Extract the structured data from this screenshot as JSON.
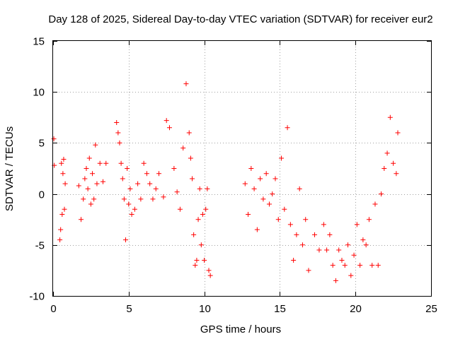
{
  "chart_data": {
    "type": "scatter",
    "title": "Day 128 of 2025, Sidereal Day-to-day VTEC variation (SDTVAR) for receiver eur2",
    "xlabel": "GPS time / hours",
    "ylabel": "SDTVAR / TECUs",
    "xlim": [
      0,
      25
    ],
    "ylim": [
      -10,
      15
    ],
    "x_ticks": [
      0,
      5,
      10,
      15,
      20,
      25
    ],
    "x_tick_labels": [
      "0",
      "5",
      "10",
      "15",
      "20",
      "25"
    ],
    "y_ticks": [
      -10,
      -5,
      0,
      5,
      10,
      15
    ],
    "y_tick_labels": [
      "-10",
      "-5",
      "0",
      "5",
      "10",
      "15"
    ],
    "grid": true,
    "marker": "plus",
    "series_color": "#ff0000",
    "series": [
      {
        "name": "SDTVAR eur2",
        "x": [
          0.05,
          0.08,
          0.45,
          0.5,
          0.55,
          0.6,
          0.65,
          0.7,
          0.75,
          0.8,
          1.7,
          1.85,
          2.0,
          2.1,
          2.2,
          2.3,
          2.4,
          2.5,
          2.6,
          2.7,
          2.8,
          2.9,
          3.1,
          3.3,
          3.5,
          4.2,
          4.3,
          4.4,
          4.5,
          4.6,
          4.7,
          4.8,
          4.9,
          5.0,
          5.1,
          5.2,
          5.4,
          5.6,
          5.8,
          6.0,
          6.2,
          6.4,
          6.6,
          6.8,
          7.0,
          7.3,
          7.5,
          7.7,
          8.0,
          8.2,
          8.4,
          8.6,
          8.8,
          9.0,
          9.1,
          9.2,
          9.3,
          9.4,
          9.5,
          9.6,
          9.7,
          9.8,
          9.9,
          10.0,
          10.1,
          10.2,
          10.3,
          10.4,
          12.7,
          12.9,
          13.1,
          13.3,
          13.5,
          13.7,
          13.9,
          14.1,
          14.3,
          14.5,
          14.7,
          14.9,
          15.1,
          15.3,
          15.5,
          15.7,
          15.9,
          16.1,
          16.3,
          16.5,
          16.7,
          16.9,
          17.3,
          17.6,
          17.9,
          18.1,
          18.3,
          18.5,
          18.7,
          18.9,
          19.1,
          19.3,
          19.5,
          19.7,
          19.9,
          20.1,
          20.3,
          20.5,
          20.7,
          20.9,
          21.1,
          21.3,
          21.5,
          21.7,
          21.9,
          22.1,
          22.3,
          22.5,
          22.7,
          22.8
        ],
        "y": [
          5.4,
          2.8,
          -4.5,
          -3.5,
          3.0,
          -2.0,
          2.0,
          3.4,
          -1.5,
          1.0,
          0.8,
          -2.5,
          -0.5,
          1.5,
          2.5,
          0.5,
          3.5,
          -1.0,
          2.0,
          -0.5,
          4.8,
          1.0,
          3.0,
          1.2,
          3.0,
          7.0,
          6.0,
          5.0,
          3.0,
          1.5,
          -0.5,
          -4.5,
          2.5,
          -1.0,
          0.5,
          -2.0,
          -1.5,
          1.0,
          -0.5,
          3.0,
          2.0,
          1.0,
          -0.5,
          0.5,
          2.0,
          -0.3,
          7.2,
          6.5,
          2.5,
          0.2,
          -1.5,
          4.5,
          10.8,
          6.0,
          3.5,
          1.5,
          -4.0,
          -7.0,
          -6.5,
          -2.5,
          0.5,
          -5.0,
          -2.0,
          -6.5,
          -1.5,
          0.5,
          -7.5,
          -8.0,
          1.0,
          -2.0,
          2.5,
          0.5,
          -3.5,
          1.5,
          -0.5,
          2.0,
          -1.0,
          0.0,
          1.5,
          -2.5,
          3.5,
          -1.5,
          6.5,
          -3.0,
          -6.5,
          -4.0,
          0.5,
          -5.0,
          -2.5,
          -7.5,
          -4.0,
          -5.5,
          -3.0,
          -5.5,
          -4.0,
          -7.0,
          -8.5,
          -5.5,
          -6.5,
          -7.0,
          -5.0,
          -8.0,
          -6.0,
          -3.0,
          -7.0,
          -4.5,
          -5.0,
          -2.5,
          -7.0,
          -1.0,
          -7.0,
          0.0,
          2.5,
          4.0,
          7.5,
          3.0,
          2.0,
          6.0
        ]
      }
    ]
  }
}
